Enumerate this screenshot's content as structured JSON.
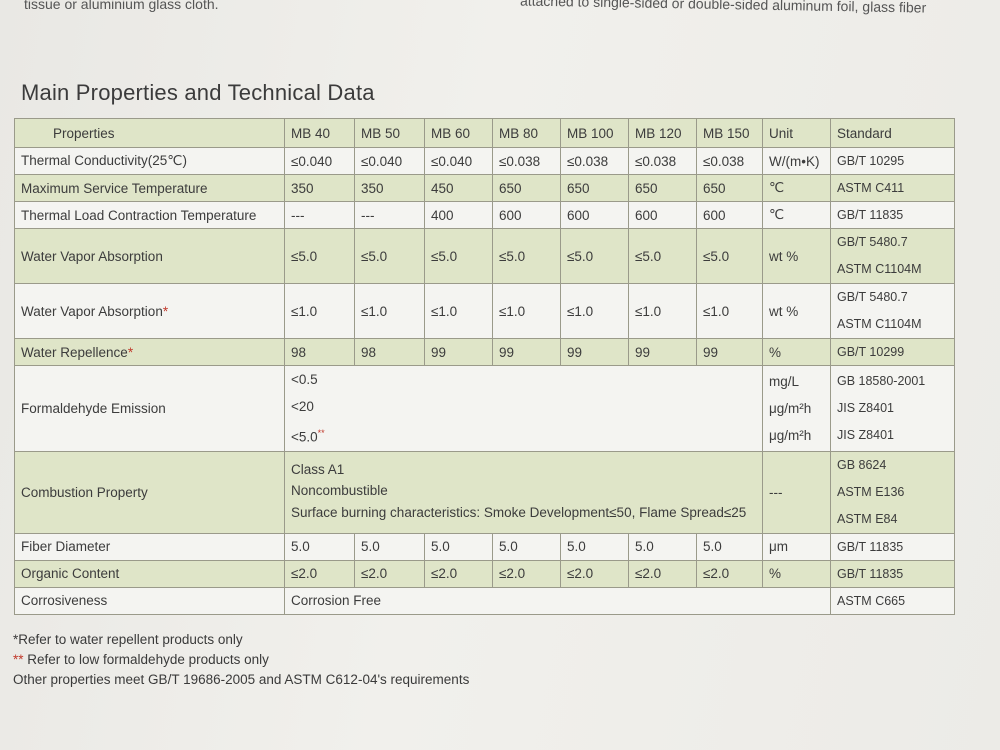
{
  "header_fragments": {
    "left": "tissue or aluminium glass cloth.",
    "right": "attached to single-sided or double-sided aluminum foil, glass fiber"
  },
  "title": "Main Properties and Technical Data",
  "table": {
    "headers": [
      "Properties",
      "MB 40",
      "MB 50",
      "MB 60",
      "MB 80",
      "MB 100",
      "MB 120",
      "MB 150",
      "Unit",
      "Standard"
    ],
    "rows": {
      "thermal_conductivity": {
        "property": "Thermal Conductivity(25℃)",
        "values": [
          "≤0.040",
          "≤0.040",
          "≤0.040",
          "≤0.038",
          "≤0.038",
          "≤0.038",
          "≤0.038"
        ],
        "unit": "W/(m•K)",
        "standard": "GB/T 10295"
      },
      "max_service_temp": {
        "property": "Maximum Service Temperature",
        "values": [
          "350",
          "350",
          "450",
          "650",
          "650",
          "650",
          "650"
        ],
        "unit": "℃",
        "standard": "ASTM C411"
      },
      "thermal_load": {
        "property": "Thermal Load Contraction Temperature",
        "values": [
          "---",
          "---",
          "400",
          "600",
          "600",
          "600",
          "600"
        ],
        "unit": "℃",
        "standard": "GB/T 11835"
      },
      "water_vapor_1": {
        "property": "Water Vapor Absorption",
        "values": [
          "≤5.0",
          "≤5.0",
          "≤5.0",
          "≤5.0",
          "≤5.0",
          "≤5.0",
          "≤5.0"
        ],
        "unit": "wt %",
        "standard_1": "GB/T 5480.7",
        "standard_2": "ASTM C1104M"
      },
      "water_vapor_2": {
        "property": "Water Vapor Absorption",
        "mark": "*",
        "values": [
          "≤1.0",
          "≤1.0",
          "≤1.0",
          "≤1.0",
          "≤1.0",
          "≤1.0",
          "≤1.0"
        ],
        "unit": "wt %",
        "standard_1": "GB/T 5480.7",
        "standard_2": "ASTM C1104M"
      },
      "water_repellence": {
        "property": "Water Repellence",
        "mark": "*",
        "values": [
          "98",
          "98",
          "99",
          "99",
          "99",
          "99",
          "99"
        ],
        "unit": "%",
        "standard": "GB/T 10299"
      },
      "formaldehyde": {
        "property": "Formaldehyde Emission",
        "value_1": "<0.5",
        "value_2": "<20",
        "value_3": "<5.0",
        "value_3_mark": "**",
        "unit_1": "mg/L",
        "unit_2": "μg/m²h",
        "unit_3": "μg/m²h",
        "standard_1": "GB 18580-2001",
        "standard_2": "JIS Z8401",
        "standard_3": "JIS Z8401"
      },
      "combustion": {
        "property": "Combustion Property",
        "value_1": "Class A1",
        "value_2": "Noncombustible",
        "value_3": "Surface burning characteristics: Smoke Development≤50, Flame Spread≤25",
        "unit": "---",
        "standard_1": "GB 8624",
        "standard_2": "ASTM E136",
        "standard_3": "ASTM E84"
      },
      "fiber_diameter": {
        "property": "Fiber Diameter",
        "values": [
          "5.0",
          "5.0",
          "5.0",
          "5.0",
          "5.0",
          "5.0",
          "5.0"
        ],
        "unit": "μm",
        "standard": "GB/T 11835"
      },
      "organic_content": {
        "property": "Organic Content",
        "values": [
          "≤2.0",
          "≤2.0",
          "≤2.0",
          "≤2.0",
          "≤2.0",
          "≤2.0",
          "≤2.0"
        ],
        "unit": "%",
        "standard": "GB/T 11835"
      },
      "corrosiveness": {
        "property": "Corrosiveness",
        "value": "Corrosion Free",
        "standard": "ASTM C665"
      }
    }
  },
  "footnotes": {
    "note_1": "*Refer to water repellent products only",
    "note_2_mark": "**",
    "note_2": " Refer to low formaldehyde products only",
    "note_3": "Other properties meet GB/T 19686-2005 and ASTM C612-04's requirements"
  }
}
